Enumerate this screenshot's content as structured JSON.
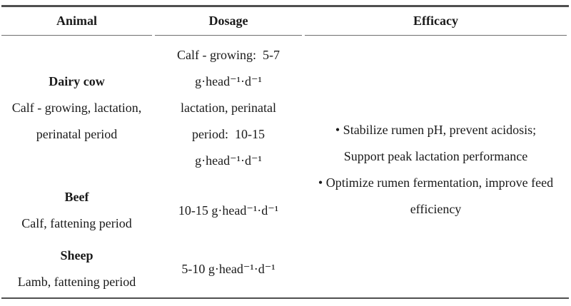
{
  "table": {
    "columns": [
      {
        "label": "Animal"
      },
      {
        "label": "Dosage"
      },
      {
        "label": "Efficacy"
      }
    ],
    "rows": [
      {
        "animal": {
          "name": "Dairy cow",
          "detail_lines": [
            "Calf - growing, lactation,",
            "perinatal period"
          ]
        },
        "dosage_lines": [
          "Calf - growing:  5-7",
          "g·head⁻¹·d⁻¹",
          "lactation, perinatal",
          "period:  10-15",
          "g·head⁻¹·d⁻¹"
        ]
      },
      {
        "animal": {
          "name": "Beef",
          "detail_lines": [
            "Calf, fattening period"
          ]
        },
        "dosage_lines": [
          "10-15 g·head⁻¹·d⁻¹"
        ]
      },
      {
        "animal": {
          "name": "Sheep",
          "detail_lines": [
            "Lamb, fattening period"
          ]
        },
        "dosage_lines": [
          "5-10 g·head⁻¹·d⁻¹"
        ]
      }
    ],
    "efficacy": {
      "lines": [
        "• Stabilize rumen pH, prevent acidosis;",
        "Support peak lactation performance",
        "• Optimize rumen fermentation, improve feed",
        "efficiency"
      ]
    }
  },
  "colors": {
    "border_heavy": "#4f4f4f",
    "border_light": "#6e6e6e",
    "text": "#1a1a1a",
    "background": "#ffffff"
  }
}
